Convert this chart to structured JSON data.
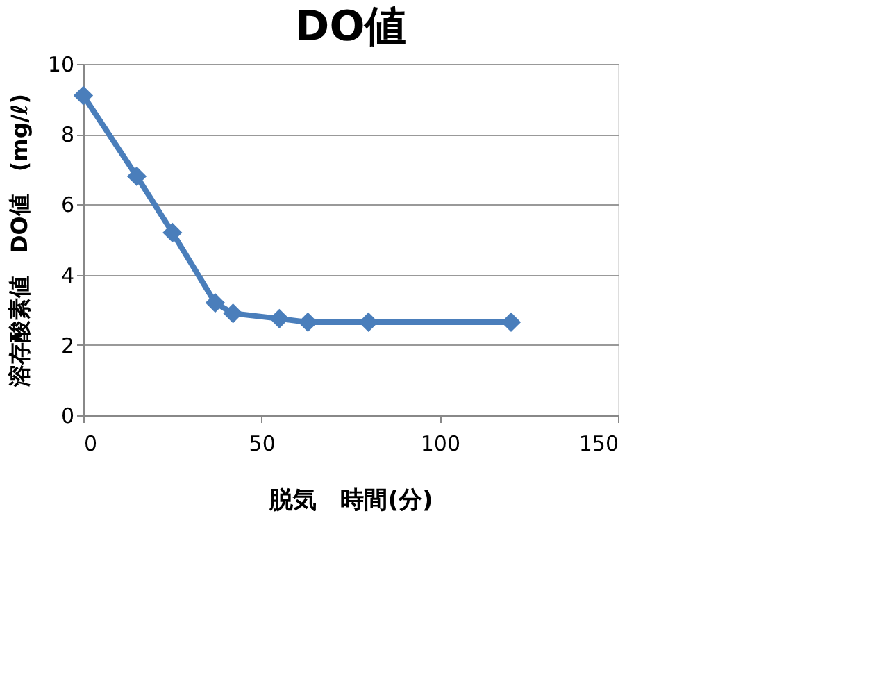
{
  "chart_data": {
    "type": "line",
    "title": "DO値",
    "xlabel": "脱気　時間(分)",
    "ylabel": "溶存酸素値　DO値　(mg/ℓ)",
    "x": [
      0,
      15,
      25,
      37,
      42,
      55,
      63,
      80,
      120
    ],
    "series": [
      {
        "color": "#4a7ebb",
        "values": [
          9.1,
          6.8,
          5.2,
          3.2,
          2.9,
          2.75,
          2.65,
          2.65,
          2.65
        ]
      }
    ],
    "xlim": [
      0,
      150
    ],
    "xticks": [
      0,
      50,
      100,
      150
    ],
    "ylim": [
      0,
      10
    ],
    "yticks": [
      0,
      2,
      4,
      6,
      8,
      10
    ],
    "grid": "y",
    "marker": "diamond",
    "line_style": "solid"
  }
}
